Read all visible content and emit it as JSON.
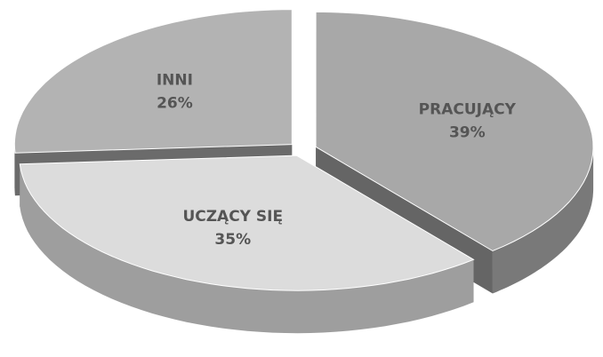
{
  "chart_data": {
    "type": "pie3d",
    "categories": [
      "PRACUJĄCY",
      "UCZĄCY SIĘ",
      "INNI"
    ],
    "values": [
      39,
      35,
      26
    ],
    "value_labels": [
      "39%",
      "35%",
      "26%"
    ],
    "colors": [
      "#a8a8a8",
      "#dcdcdc",
      "#b3b3b3"
    ]
  }
}
